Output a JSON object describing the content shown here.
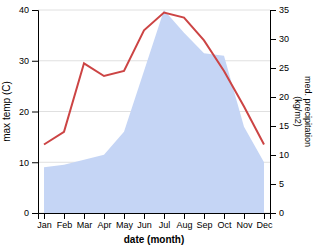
{
  "chart_data": {
    "type": "line",
    "categories": [
      "Jan",
      "Feb",
      "Mar",
      "Apr",
      "May",
      "Jun",
      "Jul",
      "Aug",
      "Sep",
      "Oct",
      "Nov",
      "Dec"
    ],
    "series": [
      {
        "type": "area",
        "color": "#c5d5f5",
        "values": [
          9.0,
          9.5,
          10.5,
          11.5,
          16.0,
          28.0,
          40.0,
          35.5,
          31.5,
          31.0,
          17.0,
          10.0
        ]
      },
      {
        "type": "line",
        "color": "#cc4444",
        "values": [
          13.5,
          16.0,
          29.5,
          27.0,
          28.0,
          36.0,
          39.5,
          38.5,
          34.0,
          28.0,
          21.0,
          13.5
        ]
      }
    ],
    "x_label": "date (month)",
    "y_label": "max temp (C)",
    "y2_label": "med. precipitation\n(kg/m2)",
    "ylim": [
      0,
      40
    ],
    "yticks": [
      0,
      10,
      20,
      30,
      40
    ],
    "y2lim": [
      0,
      35
    ],
    "y2ticks": [
      0,
      5,
      10,
      15,
      20,
      25,
      30,
      35
    ],
    "grid": true
  }
}
